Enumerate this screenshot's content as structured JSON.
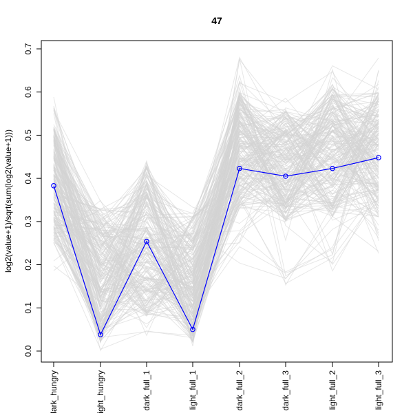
{
  "chart_data": {
    "type": "line",
    "title": "47",
    "xlabel": "",
    "ylabel": "log2(value+1)/sqrt(sum(log2(value+1)))",
    "categories": [
      "dark_hungry",
      "light_hungry",
      "dark_full_1",
      "light_full_1",
      "dark_full_2",
      "dark_full_3",
      "light_full_2",
      "light_full_3"
    ],
    "ylim": [
      0.0,
      0.7
    ],
    "yticks": [
      "0.0",
      "0.1",
      "0.2",
      "0.3",
      "0.4",
      "0.5",
      "0.6",
      "0.7"
    ],
    "grid": false,
    "series": [
      {
        "values": [
          0.383,
          0.038,
          0.254,
          0.05,
          0.423,
          0.405,
          0.423,
          0.448
        ],
        "color": "#0000ff"
      }
    ],
    "background_band": {
      "color": "#d3d3d3",
      "min": [
        0.18,
        0.0,
        0.0,
        0.0,
        0.19,
        0.15,
        0.18,
        0.18
      ],
      "max": [
        0.595,
        0.35,
        0.475,
        0.335,
        0.685,
        0.625,
        0.69,
        0.68
      ],
      "core_low": [
        0.25,
        0.02,
        0.08,
        0.02,
        0.33,
        0.3,
        0.31,
        0.31
      ],
      "core_high": [
        0.52,
        0.33,
        0.44,
        0.32,
        0.6,
        0.56,
        0.62,
        0.6
      ]
    }
  }
}
